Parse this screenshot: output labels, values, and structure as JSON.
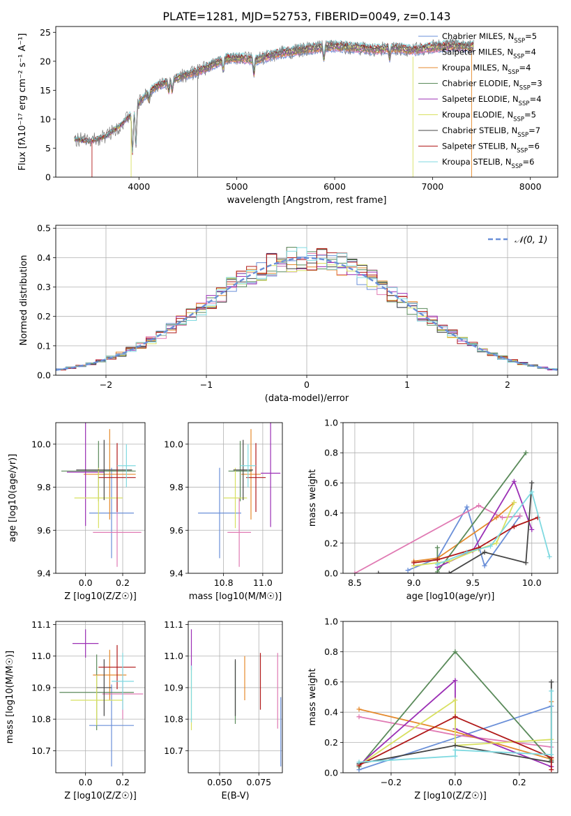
{
  "figure": {
    "title": "PLATE=1281, MJD=52753, FIBERID=0049, z=0.143"
  },
  "chart_data": [
    {
      "id": "spectrum",
      "type": "line",
      "xlabel": "wavelength [Angstrom, rest frame]",
      "ylabel": "Flux [fλ10⁻¹⁷ erg cm⁻² s⁻¹ A⁻¹]",
      "xlim": [
        3150,
        8280
      ],
      "ylim": [
        0,
        26
      ],
      "xticks": [
        4000,
        5000,
        6000,
        7000,
        8000
      ],
      "yticks": [
        0,
        5,
        10,
        15,
        20,
        25
      ],
      "grid": false,
      "legend_position": "top-right",
      "data_series": {
        "x": [
          3350,
          3500,
          3650,
          3800,
          3900,
          4000,
          4100,
          4200,
          4300,
          4450,
          4600,
          4750,
          4900,
          5050,
          5200,
          5400,
          5600,
          5800,
          6000,
          6200,
          6400,
          6600,
          6800,
          7000,
          7200,
          7400
        ],
        "y": [
          6.6,
          6.2,
          7.0,
          8.8,
          10.5,
          12.8,
          14.8,
          15.8,
          16.5,
          17.5,
          18.2,
          19.4,
          20.5,
          20.5,
          20.2,
          21.3,
          21.8,
          22.3,
          22.6,
          22.4,
          22.0,
          22.3,
          21.9,
          22.4,
          22.7,
          22.5
        ]
      },
      "series": [
        {
          "name": "Chabrier MILES, N_SSP=5",
          "color": "#6a8fd8"
        },
        {
          "name": "Salpeter MILES, N_SSP=4",
          "color": "#e07ab3"
        },
        {
          "name": "Kroupa MILES, N_SSP=4",
          "color": "#e58a2d"
        },
        {
          "name": "Chabrier ELODIE, N_SSP=3",
          "color": "#5a8a5a"
        },
        {
          "name": "Salpeter ELODIE, N_SSP=4",
          "color": "#9b2fb5"
        },
        {
          "name": "Kroupa ELODIE, N_SSP=5",
          "color": "#d8e060"
        },
        {
          "name": "Chabrier STELIB, N_SSP=7",
          "color": "#444444"
        },
        {
          "name": "Salpeter STELIB, N_SSP=6",
          "color": "#b01818"
        },
        {
          "name": "Kroupa STELIB, N_SSP=6",
          "color": "#7fd9e0"
        }
      ]
    },
    {
      "id": "residuals",
      "type": "line",
      "xlabel": "(data-model)/error",
      "ylabel": "Normed distribution",
      "xlim": [
        -2.5,
        2.5
      ],
      "ylim": [
        0,
        0.51
      ],
      "xticks": [
        -2,
        -1,
        0,
        1,
        2
      ],
      "yticks": [
        0.0,
        0.1,
        0.2,
        0.3,
        0.4,
        0.5
      ],
      "grid": true,
      "legend_position": "top-right",
      "legend": "𝒩(0, 1)",
      "gaussian": {
        "mean": 0,
        "sigma": 1,
        "color": "#6a8fd8"
      },
      "histogram_bin_width": 0.1
    },
    {
      "id": "age-vs-Z",
      "type": "scatter",
      "xlabel": "Z [log10(Z/Z☉)]",
      "ylabel": "age  [log10(age/yr)]",
      "xlim": [
        -0.16,
        0.32
      ],
      "ylim": [
        9.4,
        10.1
      ],
      "xticks": [
        0.0,
        0.2
      ],
      "yticks": [
        9.4,
        9.6,
        9.8,
        10.0
      ],
      "grid": true,
      "points": [
        {
          "x": 0.14,
          "y": 9.68,
          "xerr": 0.12,
          "yerr": 0.21,
          "color": "#6a8fd8"
        },
        {
          "x": 0.17,
          "y": 9.59,
          "xerr": 0.13,
          "yerr": 0.16,
          "color": "#e07ab3"
        },
        {
          "x": 0.13,
          "y": 9.86,
          "xerr": 0.14,
          "yerr": 0.21,
          "color": "#e58a2d"
        },
        {
          "x": 0.07,
          "y": 9.875,
          "xerr": 0.2,
          "yerr": 0.14,
          "color": "#5a8a5a"
        },
        {
          "x": 0.0,
          "y": 9.87,
          "xerr": 0.1,
          "yerr": 0.25,
          "color": "#9b2fb5"
        },
        {
          "x": 0.07,
          "y": 9.75,
          "xerr": 0.13,
          "yerr": 0.14,
          "color": "#d8e060"
        },
        {
          "x": 0.1,
          "y": 9.88,
          "xerr": 0.15,
          "yerr": 0.14,
          "color": "#444444"
        },
        {
          "x": 0.17,
          "y": 9.845,
          "xerr": 0.1,
          "yerr": 0.16,
          "color": "#b01818"
        },
        {
          "x": 0.22,
          "y": 9.9,
          "xerr": 0.05,
          "yerr": 0.1,
          "color": "#7fd9e0"
        }
      ]
    },
    {
      "id": "age-vs-mass",
      "type": "scatter",
      "xlabel": "mass [log10(M/M☉)]",
      "ylabel": "",
      "xlim": [
        10.62,
        11.1
      ],
      "ylim": [
        9.4,
        10.1
      ],
      "xticks": [
        10.8,
        11.0
      ],
      "yticks": [
        9.4,
        9.6,
        9.8,
        10.0
      ],
      "grid": true,
      "points": [
        {
          "x": 10.78,
          "y": 9.68,
          "xerr": 0.11,
          "yerr": 0.21,
          "color": "#6a8fd8"
        },
        {
          "x": 10.88,
          "y": 9.59,
          "xerr": 0.06,
          "yerr": 0.16,
          "color": "#e07ab3"
        },
        {
          "x": 10.94,
          "y": 9.86,
          "xerr": 0.05,
          "yerr": 0.21,
          "color": "#e58a2d"
        },
        {
          "x": 10.885,
          "y": 9.875,
          "xerr": 0.06,
          "yerr": 0.14,
          "color": "#5a8a5a"
        },
        {
          "x": 11.04,
          "y": 9.865,
          "xerr": 0.05,
          "yerr": 0.25,
          "color": "#9b2fb5"
        },
        {
          "x": 10.86,
          "y": 9.75,
          "xerr": 0.06,
          "yerr": 0.14,
          "color": "#d8e060"
        },
        {
          "x": 10.9,
          "y": 9.88,
          "xerr": 0.05,
          "yerr": 0.14,
          "color": "#444444"
        },
        {
          "x": 10.965,
          "y": 9.845,
          "xerr": 0.05,
          "yerr": 0.16,
          "color": "#b01818"
        },
        {
          "x": 10.925,
          "y": 9.9,
          "xerr": 0.04,
          "yerr": 0.1,
          "color": "#7fd9e0"
        }
      ]
    },
    {
      "id": "weight-vs-age",
      "type": "line",
      "xlabel": "age  [log10(age/yr)]",
      "ylabel": "mass weight",
      "xlim": [
        8.4,
        10.22
      ],
      "ylim": [
        0,
        1.0
      ],
      "xticks": [
        8.5,
        9.0,
        9.5,
        10.0
      ],
      "yticks": [
        0.0,
        0.2,
        0.4,
        0.6,
        0.8,
        1.0
      ],
      "grid": true,
      "series": [
        {
          "color": "#6a8fd8",
          "x": [
            8.95,
            9.2,
            9.45,
            9.6,
            9.9
          ],
          "y": [
            0.02,
            0.1,
            0.44,
            0.05,
            0.38
          ]
        },
        {
          "color": "#e07ab3",
          "x": [
            8.5,
            9.55,
            9.75,
            9.9
          ],
          "y": [
            0.0,
            0.45,
            0.37,
            0.38
          ]
        },
        {
          "color": "#e58a2d",
          "x": [
            9.0,
            9.2,
            9.7,
            9.85
          ],
          "y": [
            0.08,
            0.1,
            0.37,
            0.47
          ]
        },
        {
          "color": "#5a8a5a",
          "x": [
            9.2,
            9.2,
            9.95
          ],
          "y": [
            0.17,
            0.01,
            0.8
          ]
        },
        {
          "color": "#9b2fb5",
          "x": [
            9.2,
            9.5,
            9.85,
            10.0
          ],
          "y": [
            0.04,
            0.15,
            0.61,
            0.29
          ]
        },
        {
          "color": "#d8e060",
          "x": [
            9.0,
            9.3,
            9.55,
            9.7,
            9.85
          ],
          "y": [
            0.05,
            0.08,
            0.16,
            0.2,
            0.47
          ]
        },
        {
          "color": "#444444",
          "x": [
            8.7,
            9.3,
            9.6,
            9.95,
            10.0
          ],
          "y": [
            0.0,
            0.0,
            0.14,
            0.07,
            0.6
          ]
        },
        {
          "color": "#b01818",
          "x": [
            9.0,
            9.2,
            9.55,
            9.85,
            10.05
          ],
          "y": [
            0.07,
            0.09,
            0.17,
            0.31,
            0.37
          ]
        },
        {
          "color": "#7fd9e0",
          "x": [
            9.2,
            9.45,
            9.65,
            10.0,
            10.15
          ],
          "y": [
            0.06,
            0.14,
            0.18,
            0.54,
            0.11
          ]
        }
      ]
    },
    {
      "id": "mass-vs-Z",
      "type": "scatter",
      "xlabel": "Z [log10(Z/Z☉)]",
      "ylabel": "mass [log10(M/M☉)]",
      "xlim": [
        -0.16,
        0.32
      ],
      "ylim": [
        10.63,
        11.11
      ],
      "xticks": [
        0.0,
        0.2
      ],
      "yticks": [
        10.7,
        10.8,
        10.9,
        11.0,
        11.1
      ],
      "grid": true,
      "points": [
        {
          "x": 0.14,
          "y": 10.78,
          "xerr": 0.12,
          "yerr": 0.13,
          "color": "#6a8fd8"
        },
        {
          "x": 0.2,
          "y": 10.88,
          "xerr": 0.11,
          "yerr": 0.08,
          "color": "#e07ab3"
        },
        {
          "x": 0.13,
          "y": 10.94,
          "xerr": 0.09,
          "yerr": 0.08,
          "color": "#e58a2d"
        },
        {
          "x": 0.06,
          "y": 10.885,
          "xerr": 0.2,
          "yerr": 0.12,
          "color": "#5a8a5a"
        },
        {
          "x": 0.0,
          "y": 11.04,
          "xerr": 0.07,
          "yerr": 0.045,
          "color": "#9b2fb5"
        },
        {
          "x": 0.06,
          "y": 10.86,
          "xerr": 0.14,
          "yerr": 0.08,
          "color": "#d8e060"
        },
        {
          "x": 0.1,
          "y": 10.9,
          "xerr": 0.04,
          "yerr": 0.09,
          "color": "#444444"
        },
        {
          "x": 0.17,
          "y": 10.965,
          "xerr": 0.1,
          "yerr": 0.07,
          "color": "#b01818"
        },
        {
          "x": 0.2,
          "y": 10.92,
          "xerr": 0.06,
          "yerr": 0.09,
          "color": "#7fd9e0"
        }
      ]
    },
    {
      "id": "mass-vs-EBV",
      "type": "scatter",
      "xlabel": "E(B-V)",
      "ylabel": "",
      "xlim": [
        0.03,
        0.09
      ],
      "ylim": [
        10.63,
        11.11
      ],
      "xticks": [
        0.05,
        0.075
      ],
      "xticklabels": [
        "0.050",
        "0.075"
      ],
      "yticks": [
        10.7,
        10.8,
        10.9,
        11.0,
        11.1
      ],
      "grid": true,
      "points": [
        {
          "x": 0.089,
          "y": 10.76,
          "yerr": 0.11,
          "color": "#6a8fd8"
        },
        {
          "x": 0.087,
          "y": 10.89,
          "yerr": 0.12,
          "color": "#e07ab3"
        },
        {
          "x": 0.066,
          "y": 10.93,
          "yerr": 0.07,
          "color": "#e58a2d"
        },
        {
          "x": 0.06,
          "y": 10.885,
          "yerr": 0.1,
          "color": "#5a8a5a"
        },
        {
          "x": 0.032,
          "y": 11.02,
          "yerr": 0.065,
          "color": "#9b2fb5"
        },
        {
          "x": 0.032,
          "y": 10.865,
          "yerr": 0.1,
          "color": "#d8e060"
        },
        {
          "x": 0.06,
          "y": 10.9,
          "yerr": 0.09,
          "color": "#444444"
        },
        {
          "x": 0.076,
          "y": 10.92,
          "yerr": 0.09,
          "color": "#b01818"
        },
        {
          "x": 0.032,
          "y": 10.88,
          "yerr": 0.09,
          "color": "#7fd9e0"
        }
      ]
    },
    {
      "id": "weight-vs-Z",
      "type": "line",
      "xlabel": "Z [log10(Z/Z☉)]",
      "ylabel": "mass weight",
      "xlim": [
        -0.35,
        0.32
      ],
      "ylim": [
        0,
        1.0
      ],
      "xticks": [
        -0.2,
        0.0,
        0.2
      ],
      "yticks": [
        0.0,
        0.2,
        0.4,
        0.6,
        0.8,
        1.0
      ],
      "grid": true,
      "series": [
        {
          "color": "#6a8fd8",
          "x": [
            -0.3,
            -0.3,
            0.3
          ],
          "y": [
            0.06,
            0.02,
            0.44
          ]
        },
        {
          "color": "#e07ab3",
          "x": [
            -0.3,
            0.0,
            0.3
          ],
          "y": [
            0.37,
            0.25,
            0.17
          ]
        },
        {
          "color": "#e58a2d",
          "x": [
            -0.3,
            0.0,
            0.3,
            0.3
          ],
          "y": [
            0.42,
            0.27,
            0.09,
            0.47
          ]
        },
        {
          "color": "#5a8a5a",
          "x": [
            -0.3,
            0.0,
            0.3
          ],
          "y": [
            0.04,
            0.8,
            0.08
          ]
        },
        {
          "color": "#9b2fb5",
          "x": [
            -0.3,
            0.0,
            0.0,
            0.3
          ],
          "y": [
            0.05,
            0.61,
            0.29,
            0.04
          ]
        },
        {
          "color": "#d8e060",
          "x": [
            -0.3,
            0.0,
            0.0,
            0.3
          ],
          "y": [
            0.05,
            0.48,
            0.18,
            0.22
          ]
        },
        {
          "color": "#444444",
          "x": [
            -0.3,
            0.0,
            0.3,
            0.3
          ],
          "y": [
            0.06,
            0.18,
            0.07,
            0.6
          ]
        },
        {
          "color": "#b01818",
          "x": [
            -0.3,
            0.0,
            0.3,
            0.3
          ],
          "y": [
            0.05,
            0.37,
            0.1,
            0.02
          ]
        },
        {
          "color": "#7fd9e0",
          "x": [
            -0.3,
            0.0,
            0.0,
            0.3,
            0.3
          ],
          "y": [
            0.07,
            0.11,
            0.15,
            0.12,
            0.54
          ]
        }
      ]
    }
  ]
}
